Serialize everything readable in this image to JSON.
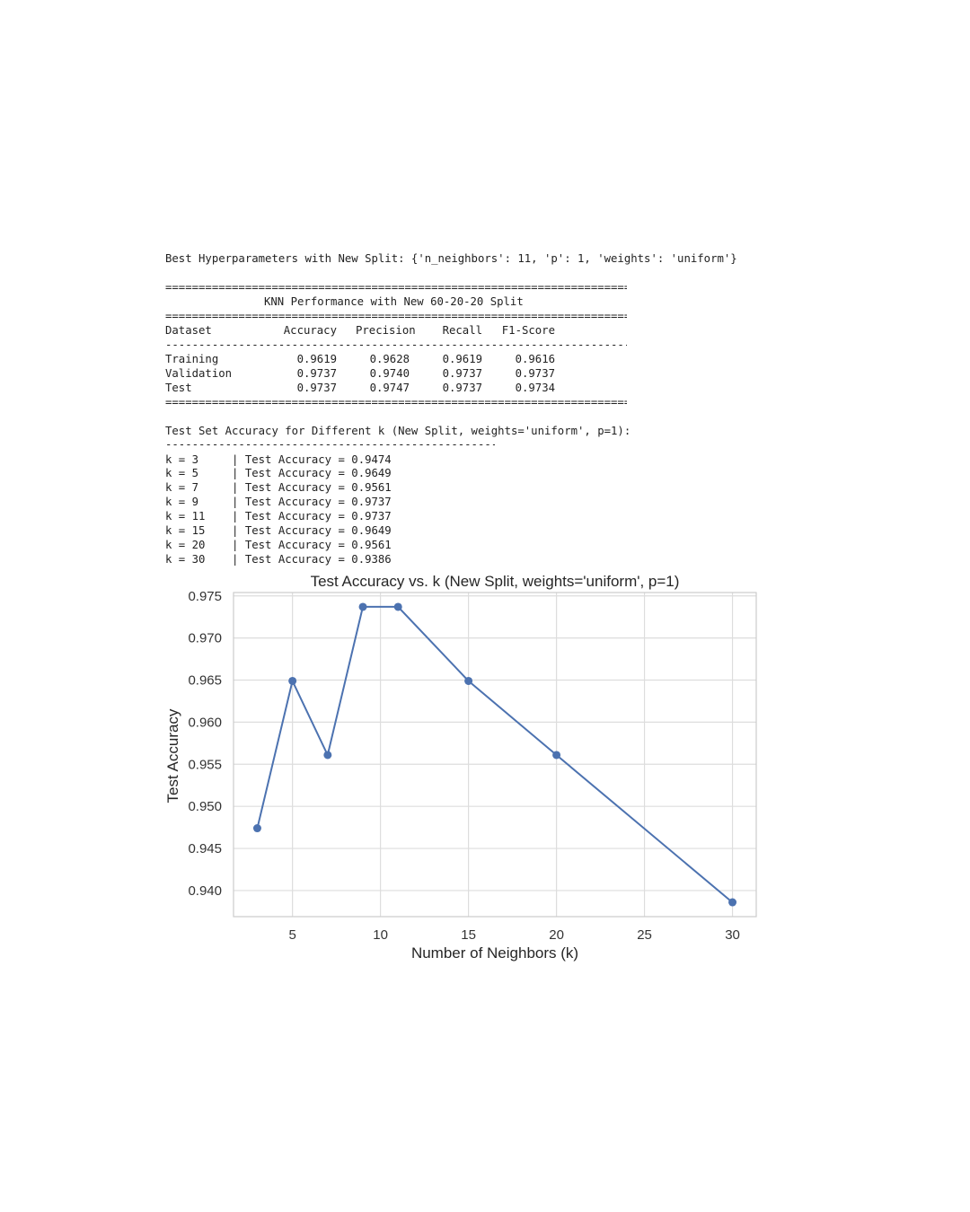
{
  "output": {
    "best_params_line": "Best Hyperparameters with New Split: {'n_neighbors': 11, 'p': 1, 'weights': 'uniform'}",
    "table": {
      "rule_double": "==========================================================================",
      "rule_single": "--------------------------------------------------------------------------",
      "title": "KNN Performance with New 60-20-20 Split",
      "headers": [
        "Dataset",
        "Accuracy",
        "Precision",
        "Recall",
        "F1-Score"
      ],
      "rows": [
        {
          "dataset": "Training",
          "accuracy": "0.9619",
          "precision": "0.9628",
          "recall": "0.9619",
          "f1": "0.9616"
        },
        {
          "dataset": "Validation",
          "accuracy": "0.9737",
          "precision": "0.9740",
          "recall": "0.9737",
          "f1": "0.9737"
        },
        {
          "dataset": "Test",
          "accuracy": "0.9737",
          "precision": "0.9747",
          "recall": "0.9737",
          "f1": "0.9734"
        }
      ]
    },
    "k_section": {
      "heading": "Test Set Accuracy for Different k (New Split, weights='uniform', p=1):",
      "rule": "----------------------------------------------------",
      "lines": [
        "k = 3     | Test Accuracy = 0.9474",
        "k = 5     | Test Accuracy = 0.9649",
        "k = 7     | Test Accuracy = 0.9561",
        "k = 9     | Test Accuracy = 0.9737",
        "k = 11    | Test Accuracy = 0.9737",
        "k = 15    | Test Accuracy = 0.9649",
        "k = 20    | Test Accuracy = 0.9561",
        "k = 30    | Test Accuracy = 0.9386"
      ]
    }
  },
  "chart_data": {
    "type": "line",
    "title": "Test Accuracy vs. k (New Split, weights='uniform', p=1)",
    "xlabel": "Number of Neighbors (k)",
    "ylabel": "Test Accuracy",
    "x": [
      3,
      5,
      7,
      9,
      11,
      15,
      20,
      30
    ],
    "y": [
      0.9474,
      0.9649,
      0.9561,
      0.9737,
      0.9737,
      0.9649,
      0.9561,
      0.9386
    ],
    "xlim": [
      1.65,
      31.35
    ],
    "ylim": [
      0.9369,
      0.9754
    ],
    "xticks": [
      "5",
      "10",
      "15",
      "20",
      "25",
      "30"
    ],
    "yticks": [
      "0.940",
      "0.945",
      "0.950",
      "0.955",
      "0.960",
      "0.965",
      "0.970",
      "0.975"
    ],
    "grid": true,
    "marker": "circle",
    "line_color": "#4c72b0"
  }
}
